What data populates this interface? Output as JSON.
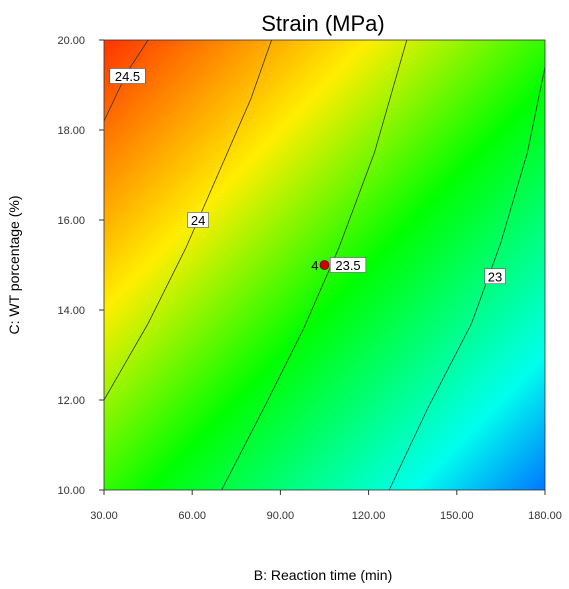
{
  "chart_data": {
    "type": "contour",
    "title": "Strain (MPa)",
    "xlabel": "B: Reaction time (min)",
    "ylabel": "C: WT porcentage (%)",
    "xlim": [
      30,
      180
    ],
    "ylim": [
      10,
      20
    ],
    "x_ticks": [
      "30.00",
      "60.00",
      "90.00",
      "120.00",
      "150.00",
      "180.00"
    ],
    "y_ticks": [
      "10.00",
      "12.00",
      "14.00",
      "16.00",
      "18.00",
      "20.00"
    ],
    "colormap": [
      "#ff3300",
      "#ffee00",
      "#00ff00",
      "#00ffee",
      "#0077ff"
    ],
    "contours": [
      {
        "label": "24.5",
        "points": [
          [
            30,
            18.2
          ],
          [
            38,
            19.3
          ],
          [
            45,
            20.0
          ]
        ],
        "label_at": [
          38,
          19.2
        ]
      },
      {
        "label": "24",
        "points": [
          [
            30,
            12.0
          ],
          [
            45,
            13.7
          ],
          [
            58,
            15.4
          ],
          [
            70,
            17.2
          ],
          [
            80,
            18.7
          ],
          [
            87,
            20.0
          ]
        ],
        "label_at": [
          62,
          16.0
        ]
      },
      {
        "label": "23.5",
        "points": [
          [
            70,
            10.0
          ],
          [
            85,
            11.9
          ],
          [
            98,
            13.6
          ],
          [
            110,
            15.4
          ],
          [
            122,
            17.5
          ],
          [
            133,
            20.0
          ]
        ],
        "label_at": [
          113,
          15.0
        ]
      },
      {
        "label": "23",
        "points": [
          [
            127,
            10.0
          ],
          [
            140,
            11.8
          ],
          [
            155,
            13.7
          ],
          [
            165,
            15.5
          ],
          [
            174,
            17.5
          ],
          [
            180,
            19.4
          ]
        ],
        "label_at": [
          163,
          14.75
        ]
      }
    ],
    "design_point": {
      "x": 105,
      "y": 15.0,
      "label": "4"
    },
    "point_color": "#cc0000"
  }
}
